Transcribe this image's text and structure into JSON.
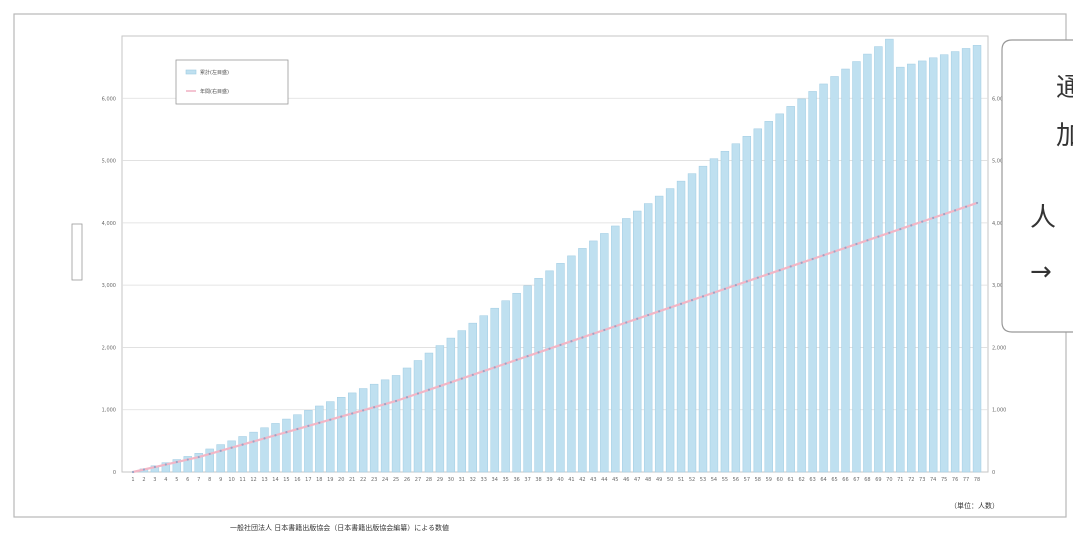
{
  "colors": {
    "bar_fill": "#bfe0f0",
    "bar_stroke": "#9fcbe2",
    "line": "#f2b6c6",
    "line_dots": "#9aa5c6",
    "grid": "#dddddd",
    "frame": "#b8b8b8",
    "callout_border": "#999999",
    "text": "#555555"
  },
  "callout": {
    "line1": "通",
    "line2": "加",
    "line3": "人",
    "line4": "→"
  },
  "source_note": "一般社団法人 日本書籍出版協会（日本書籍出版協会編纂）による数値",
  "unit_note": "（単位：人数）",
  "chart_data": {
    "type": "bar",
    "title": "",
    "xlabel": "",
    "ylabel": "",
    "ylim": [
      0,
      7
    ],
    "y_ticks": [
      0,
      1,
      2,
      3,
      4,
      5,
      6
    ],
    "y_tick_labels": [
      "0",
      "1,000",
      "2,000",
      "3,000",
      "4,000",
      "5,000",
      "6,000"
    ],
    "right_y_ticks": [
      0,
      1,
      2,
      3,
      4,
      5,
      6
    ],
    "right_y_tick_labels": [
      "0",
      "1,000",
      "2,000",
      "3,000",
      "4,000",
      "5,000",
      "6,000"
    ],
    "grid": true,
    "legend_position": "top-left",
    "legend": [
      {
        "label": "累計(左目盛)",
        "kind": "bar"
      },
      {
        "label": "年間(右目盛)",
        "kind": "line"
      }
    ],
    "categories": [
      "1",
      "2",
      "3",
      "4",
      "5",
      "6",
      "7",
      "8",
      "9",
      "10",
      "11",
      "12",
      "13",
      "14",
      "15",
      "16",
      "17",
      "18",
      "19",
      "20",
      "21",
      "22",
      "23",
      "24",
      "25",
      "26",
      "27",
      "28",
      "29",
      "30",
      "31",
      "32",
      "33",
      "34",
      "35",
      "36",
      "37",
      "38",
      "39",
      "40",
      "41",
      "42",
      "43",
      "44",
      "45",
      "46",
      "47",
      "48",
      "49",
      "50",
      "51",
      "52",
      "53",
      "54",
      "55",
      "56",
      "57",
      "58",
      "59",
      "60",
      "61",
      "62",
      "63",
      "64",
      "65",
      "66",
      "67",
      "68",
      "69",
      "70",
      "71",
      "72",
      "73",
      "74",
      "75",
      "76",
      "77",
      "78"
    ],
    "series": [
      {
        "name": "累計(左目盛)",
        "kind": "bar",
        "values": [
          0.0,
          0.05,
          0.1,
          0.15,
          0.2,
          0.25,
          0.3,
          0.37,
          0.44,
          0.5,
          0.57,
          0.64,
          0.71,
          0.78,
          0.85,
          0.92,
          0.99,
          1.06,
          1.13,
          1.2,
          1.27,
          1.34,
          1.41,
          1.48,
          1.55,
          1.67,
          1.79,
          1.91,
          2.03,
          2.15,
          2.27,
          2.39,
          2.51,
          2.63,
          2.75,
          2.87,
          2.99,
          3.11,
          3.23,
          3.35,
          3.47,
          3.59,
          3.71,
          3.83,
          3.95,
          4.07,
          4.19,
          4.31,
          4.43,
          4.55,
          4.67,
          4.79,
          4.91,
          5.03,
          5.15,
          5.27,
          5.39,
          5.51,
          5.63,
          5.75,
          5.87,
          5.99,
          6.11,
          6.23,
          6.35,
          6.47,
          6.59,
          6.71,
          6.83,
          6.95,
          6.5,
          6.55,
          6.6,
          6.65,
          6.7,
          6.75,
          6.8,
          6.85
        ]
      },
      {
        "name": "年間(右目盛)",
        "kind": "line",
        "values": [
          0.0,
          0.04,
          0.08,
          0.12,
          0.16,
          0.2,
          0.24,
          0.29,
          0.34,
          0.39,
          0.44,
          0.49,
          0.54,
          0.59,
          0.64,
          0.69,
          0.74,
          0.79,
          0.84,
          0.89,
          0.94,
          0.99,
          1.04,
          1.09,
          1.14,
          1.2,
          1.26,
          1.32,
          1.38,
          1.44,
          1.5,
          1.56,
          1.62,
          1.68,
          1.74,
          1.8,
          1.86,
          1.92,
          1.98,
          2.04,
          2.1,
          2.16,
          2.22,
          2.28,
          2.34,
          2.4,
          2.46,
          2.52,
          2.58,
          2.64,
          2.7,
          2.76,
          2.82,
          2.88,
          2.94,
          3.0,
          3.06,
          3.12,
          3.18,
          3.24,
          3.3,
          3.36,
          3.42,
          3.48,
          3.54,
          3.6,
          3.66,
          3.72,
          3.78,
          3.84,
          3.9,
          3.96,
          4.02,
          4.08,
          4.14,
          4.2,
          4.26,
          4.32
        ]
      }
    ]
  }
}
